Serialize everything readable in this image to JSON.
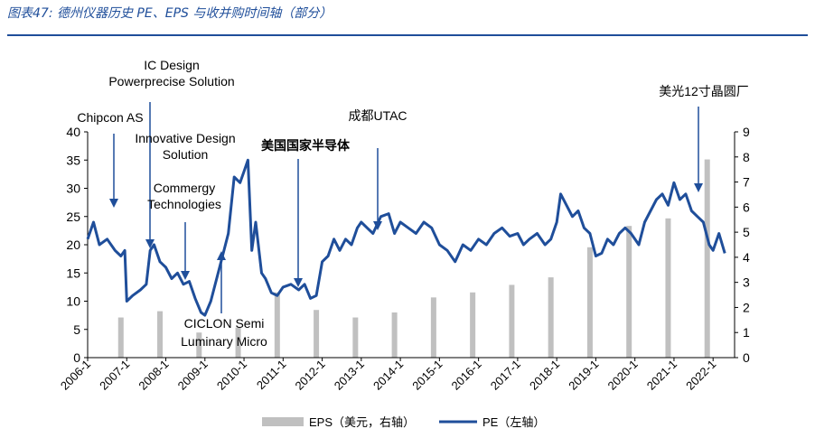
{
  "figure_title": "图表47: 德州仪器历史 PE、EPS 与收并购时间轴（部分）",
  "chart_data": {
    "type": "line+bar",
    "x_tick_labels": [
      "2006-1",
      "2007-1",
      "2008-1",
      "2009-1",
      "2010-1",
      "2011-1",
      "2012-1",
      "2013-1",
      "2014-1",
      "2015-1",
      "2016-1",
      "2017-1",
      "2018-1",
      "2019-1",
      "2020-1",
      "2021-1",
      "2022-1"
    ],
    "left_axis": {
      "ticks": [
        0,
        5,
        10,
        15,
        20,
        25,
        30,
        35,
        40
      ],
      "range": [
        0,
        40
      ]
    },
    "right_axis": {
      "ticks": [
        0,
        1,
        2,
        3,
        4,
        5,
        6,
        7,
        8,
        9
      ],
      "range": [
        0,
        9
      ]
    },
    "legend": {
      "eps": "EPS（美元，右轴）",
      "pe": "PE（左轴）"
    },
    "colors": {
      "pe_line": "#1f4e9a",
      "eps_bar": "#c0c0c0",
      "annotation_arrow": "#1f4e9a"
    },
    "eps_series": {
      "name": "EPS（美元，右轴）",
      "points": [
        [
          2006.85,
          1.6
        ],
        [
          2007.85,
          1.85
        ],
        [
          2008.85,
          1.0
        ],
        [
          2009.85,
          1.2
        ],
        [
          2010.85,
          2.6
        ],
        [
          2011.85,
          1.9
        ],
        [
          2012.85,
          1.6
        ],
        [
          2013.85,
          1.8
        ],
        [
          2014.85,
          2.4
        ],
        [
          2015.85,
          2.6
        ],
        [
          2016.85,
          2.9
        ],
        [
          2017.85,
          3.2
        ],
        [
          2018.85,
          4.4
        ],
        [
          2019.85,
          5.25
        ],
        [
          2020.85,
          5.55
        ],
        [
          2021.85,
          7.9
        ]
      ]
    },
    "pe_series": {
      "name": "PE（左轴）",
      "points": [
        [
          2006.0,
          21
        ],
        [
          2006.15,
          24
        ],
        [
          2006.3,
          20
        ],
        [
          2006.5,
          21
        ],
        [
          2006.7,
          19
        ],
        [
          2006.85,
          18
        ],
        [
          2006.95,
          19
        ],
        [
          2007.0,
          10
        ],
        [
          2007.15,
          11
        ],
        [
          2007.35,
          12
        ],
        [
          2007.5,
          13
        ],
        [
          2007.6,
          19
        ],
        [
          2007.7,
          20
        ],
        [
          2007.85,
          17
        ],
        [
          2008.0,
          16
        ],
        [
          2008.15,
          14
        ],
        [
          2008.3,
          15
        ],
        [
          2008.45,
          13
        ],
        [
          2008.6,
          13.5
        ],
        [
          2008.75,
          10.5
        ],
        [
          2008.9,
          8
        ],
        [
          2009.0,
          7.5
        ],
        [
          2009.15,
          10
        ],
        [
          2009.3,
          14
        ],
        [
          2009.45,
          18
        ],
        [
          2009.6,
          22
        ],
        [
          2009.75,
          32
        ],
        [
          2009.9,
          31
        ],
        [
          2010.0,
          33
        ],
        [
          2010.1,
          35
        ],
        [
          2010.2,
          19
        ],
        [
          2010.3,
          24
        ],
        [
          2010.45,
          15
        ],
        [
          2010.55,
          14
        ],
        [
          2010.7,
          11.5
        ],
        [
          2010.85,
          11
        ],
        [
          2011.0,
          12.5
        ],
        [
          2011.2,
          13
        ],
        [
          2011.4,
          12
        ],
        [
          2011.55,
          13
        ],
        [
          2011.7,
          10.5
        ],
        [
          2011.85,
          11
        ],
        [
          2012.0,
          17
        ],
        [
          2012.15,
          18
        ],
        [
          2012.3,
          21
        ],
        [
          2012.45,
          19
        ],
        [
          2012.6,
          21
        ],
        [
          2012.75,
          20
        ],
        [
          2012.9,
          23
        ],
        [
          2013.0,
          24
        ],
        [
          2013.15,
          23
        ],
        [
          2013.3,
          22
        ],
        [
          2013.5,
          25
        ],
        [
          2013.7,
          25.5
        ],
        [
          2013.85,
          22
        ],
        [
          2014.0,
          24
        ],
        [
          2014.2,
          23
        ],
        [
          2014.4,
          22
        ],
        [
          2014.6,
          24
        ],
        [
          2014.8,
          23
        ],
        [
          2015.0,
          20
        ],
        [
          2015.2,
          19
        ],
        [
          2015.4,
          17
        ],
        [
          2015.6,
          20
        ],
        [
          2015.8,
          19
        ],
        [
          2016.0,
          21
        ],
        [
          2016.2,
          20
        ],
        [
          2016.4,
          22
        ],
        [
          2016.6,
          23
        ],
        [
          2016.8,
          21.5
        ],
        [
          2017.0,
          22
        ],
        [
          2017.15,
          20
        ],
        [
          2017.3,
          21
        ],
        [
          2017.5,
          22
        ],
        [
          2017.7,
          20
        ],
        [
          2017.85,
          21
        ],
        [
          2018.0,
          24
        ],
        [
          2018.1,
          29
        ],
        [
          2018.25,
          27
        ],
        [
          2018.4,
          25
        ],
        [
          2018.55,
          26
        ],
        [
          2018.7,
          23
        ],
        [
          2018.85,
          22
        ],
        [
          2019.0,
          18
        ],
        [
          2019.15,
          18.5
        ],
        [
          2019.3,
          21
        ],
        [
          2019.45,
          20
        ],
        [
          2019.6,
          22
        ],
        [
          2019.75,
          23
        ],
        [
          2019.9,
          22
        ],
        [
          2020.1,
          20
        ],
        [
          2020.25,
          24
        ],
        [
          2020.4,
          26
        ],
        [
          2020.55,
          28
        ],
        [
          2020.7,
          29
        ],
        [
          2020.85,
          27
        ],
        [
          2021.0,
          31
        ],
        [
          2021.15,
          28
        ],
        [
          2021.3,
          29
        ],
        [
          2021.45,
          26
        ],
        [
          2021.6,
          25
        ],
        [
          2021.75,
          24
        ],
        [
          2021.9,
          20
        ],
        [
          2022.0,
          19
        ],
        [
          2022.15,
          22
        ],
        [
          2022.3,
          18.5
        ]
      ]
    },
    "annotations": [
      {
        "id": "chipcon",
        "lines": [
          "Chipcon AS"
        ],
        "x": 2006.55
      },
      {
        "id": "icdesign",
        "lines": [
          "IC Design",
          "Powerprecise Solution"
        ],
        "x": 2007.5
      },
      {
        "id": "innovative",
        "lines": [
          "Innovative Design",
          "Solution"
        ],
        "x": 2008.3
      },
      {
        "id": "commergy",
        "lines": [
          "Commergy",
          "Technologies"
        ],
        "x": 2008.65
      },
      {
        "id": "ciclon",
        "lines": [
          "CICLON Semi",
          "Luminary Micro"
        ],
        "x": 2009.35
      },
      {
        "id": "nationalsemi",
        "lines": [
          "美国国家半导体"
        ],
        "x": 2011.35
      },
      {
        "id": "utac",
        "lines": [
          "成都UTAC"
        ],
        "x": 2013.3
      },
      {
        "id": "fab12",
        "lines": [
          "美光12寸晶圆厂"
        ],
        "x": 2021.5
      }
    ]
  }
}
